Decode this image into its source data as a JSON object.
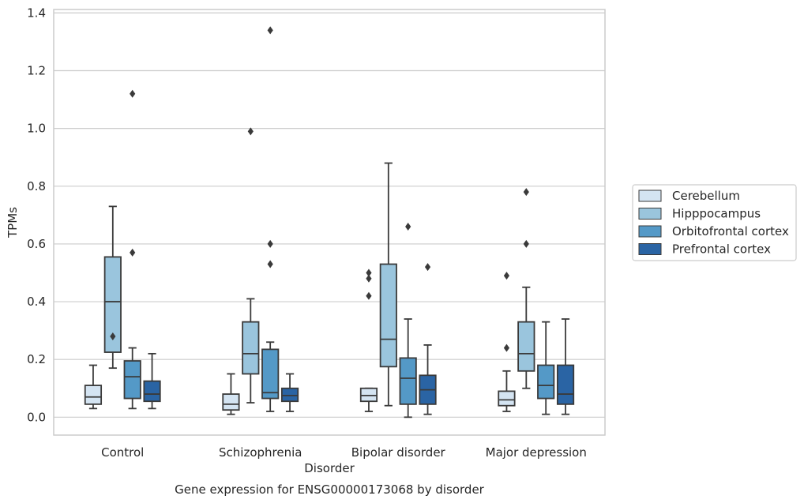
{
  "caption": "Gene expression for ENSG00000173068 by disorder",
  "chart_data": {
    "type": "box",
    "xlabel": "Disorder",
    "ylabel": "TPMs",
    "ylim": [
      -0.062,
      1.412
    ],
    "yticks": [
      "0.0",
      "0.2",
      "0.4",
      "0.6",
      "0.8",
      "1.0",
      "1.2",
      "1.4"
    ],
    "grid": true,
    "legend_position": "right",
    "categories": [
      "Control",
      "Schizophrenia",
      "Bipolar disorder",
      "Major depression"
    ],
    "series": [
      {
        "name": "Cerebellum",
        "color": "#d4e4f2",
        "boxes": [
          {
            "whislo": 0.03,
            "q1": 0.045,
            "med": 0.07,
            "q3": 0.11,
            "whishi": 0.18,
            "fliers": []
          },
          {
            "whislo": 0.01,
            "q1": 0.025,
            "med": 0.045,
            "q3": 0.08,
            "whishi": 0.15,
            "fliers": []
          },
          {
            "whislo": 0.02,
            "q1": 0.055,
            "med": 0.075,
            "q3": 0.1,
            "whishi": 0.1,
            "fliers": [
              0.42,
              0.48,
              0.5
            ]
          },
          {
            "whislo": 0.02,
            "q1": 0.04,
            "med": 0.06,
            "q3": 0.09,
            "whishi": 0.16,
            "fliers": [
              0.24,
              0.49
            ]
          }
        ]
      },
      {
        "name": "Hipppocampus",
        "color": "#9ac5dd",
        "boxes": [
          {
            "whislo": 0.17,
            "q1": 0.225,
            "med": 0.4,
            "q3": 0.555,
            "whishi": 0.73,
            "fliers": [
              0.28
            ]
          },
          {
            "whislo": 0.05,
            "q1": 0.15,
            "med": 0.22,
            "q3": 0.33,
            "whishi": 0.41,
            "fliers": [
              0.99
            ]
          },
          {
            "whislo": 0.04,
            "q1": 0.175,
            "med": 0.27,
            "q3": 0.53,
            "whishi": 0.88,
            "fliers": []
          },
          {
            "whislo": 0.1,
            "q1": 0.16,
            "med": 0.22,
            "q3": 0.33,
            "whishi": 0.45,
            "fliers": [
              0.6,
              0.78
            ]
          }
        ]
      },
      {
        "name": "Orbitofrontal cortex",
        "color": "#5499c7",
        "boxes": [
          {
            "whislo": 0.03,
            "q1": 0.065,
            "med": 0.14,
            "q3": 0.195,
            "whishi": 0.24,
            "fliers": [
              0.57,
              1.12
            ]
          },
          {
            "whislo": 0.02,
            "q1": 0.065,
            "med": 0.085,
            "q3": 0.235,
            "whishi": 0.26,
            "fliers": [
              0.53,
              0.6,
              1.34
            ]
          },
          {
            "whislo": 0.0,
            "q1": 0.045,
            "med": 0.135,
            "q3": 0.205,
            "whishi": 0.34,
            "fliers": [
              0.66
            ]
          },
          {
            "whislo": 0.01,
            "q1": 0.065,
            "med": 0.11,
            "q3": 0.18,
            "whishi": 0.33,
            "fliers": []
          }
        ]
      },
      {
        "name": "Prefrontal cortex",
        "color": "#2a64a4",
        "boxes": [
          {
            "whislo": 0.03,
            "q1": 0.055,
            "med": 0.08,
            "q3": 0.125,
            "whishi": 0.22,
            "fliers": []
          },
          {
            "whislo": 0.02,
            "q1": 0.055,
            "med": 0.075,
            "q3": 0.1,
            "whishi": 0.15,
            "fliers": []
          },
          {
            "whislo": 0.01,
            "q1": 0.045,
            "med": 0.095,
            "q3": 0.145,
            "whishi": 0.25,
            "fliers": [
              0.52
            ]
          },
          {
            "whislo": 0.01,
            "q1": 0.045,
            "med": 0.08,
            "q3": 0.18,
            "whishi": 0.34,
            "fliers": []
          }
        ]
      }
    ]
  }
}
